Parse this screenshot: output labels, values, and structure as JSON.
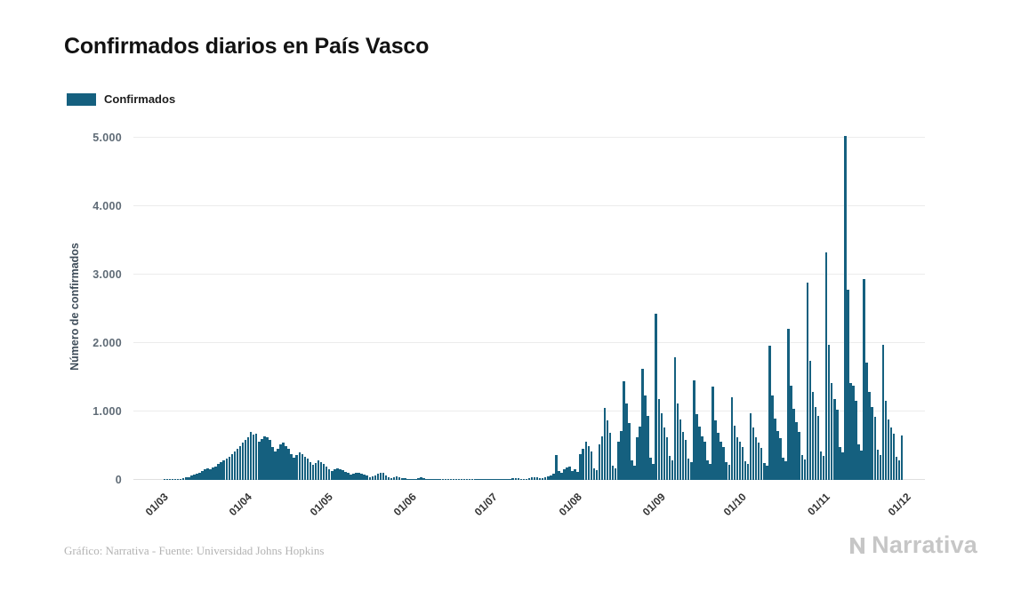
{
  "header": {
    "title": "Confirmados diarios en País Vasco"
  },
  "legend": {
    "label": "Confirmados",
    "color": "#15607f"
  },
  "footer": {
    "credit": "Gráfico: Narrativa - Fuente: Universidad Johns Hopkins",
    "brand": "Narrativa"
  },
  "chart_data": {
    "type": "bar",
    "title": "Confirmados diarios en País Vasco",
    "xlabel": "",
    "ylabel": "Número de confirmados",
    "ylim": [
      0,
      5200
    ],
    "grid": true,
    "legend_position": "top-left",
    "bar_color": "#15607f",
    "series_name": "Confirmados",
    "y_ticks": [
      {
        "value": 0,
        "label": "0"
      },
      {
        "value": 1000,
        "label": "1.000"
      },
      {
        "value": 2000,
        "label": "2.000"
      },
      {
        "value": 3000,
        "label": "3.000"
      },
      {
        "value": 4000,
        "label": "4.000"
      },
      {
        "value": 5000,
        "label": "5.000"
      }
    ],
    "x_ticks": [
      {
        "index": 10,
        "label": "01/03"
      },
      {
        "index": 41,
        "label": "01/04"
      },
      {
        "index": 71,
        "label": "01/05"
      },
      {
        "index": 102,
        "label": "01/06"
      },
      {
        "index": 132,
        "label": "01/07"
      },
      {
        "index": 163,
        "label": "01/08"
      },
      {
        "index": 194,
        "label": "01/09"
      },
      {
        "index": 224,
        "label": "01/10"
      },
      {
        "index": 255,
        "label": "01/11"
      },
      {
        "index": 285,
        "label": "01/12"
      }
    ],
    "values": [
      0,
      0,
      0,
      0,
      0,
      0,
      0,
      0,
      0,
      0,
      0,
      1,
      2,
      3,
      5,
      8,
      12,
      18,
      25,
      35,
      45,
      60,
      80,
      95,
      110,
      130,
      150,
      170,
      160,
      180,
      200,
      230,
      260,
      290,
      310,
      340,
      380,
      420,
      460,
      500,
      540,
      580,
      620,
      700,
      660,
      680,
      560,
      600,
      640,
      620,
      580,
      480,
      420,
      460,
      520,
      540,
      500,
      460,
      380,
      320,
      360,
      400,
      380,
      340,
      310,
      260,
      220,
      250,
      280,
      260,
      230,
      190,
      160,
      130,
      150,
      170,
      160,
      140,
      120,
      100,
      80,
      90,
      110,
      100,
      90,
      80,
      60,
      40,
      50,
      70,
      90,
      110,
      100,
      70,
      40,
      30,
      40,
      50,
      40,
      30,
      20,
      10,
      5,
      8,
      12,
      20,
      40,
      30,
      15,
      8,
      5,
      3,
      2,
      4,
      6,
      8,
      10,
      12,
      8,
      5,
      3,
      5,
      8,
      10,
      12,
      15,
      10,
      8,
      5,
      8,
      10,
      12,
      8,
      10,
      12,
      10,
      8,
      6,
      10,
      15,
      20,
      25,
      20,
      15,
      10,
      15,
      25,
      35,
      45,
      40,
      30,
      25,
      35,
      50,
      70,
      90,
      370,
      130,
      110,
      150,
      180,
      200,
      130,
      150,
      120,
      380,
      460,
      560,
      490,
      410,
      170,
      140,
      520,
      640,
      1050,
      870,
      690,
      210,
      170,
      560,
      720,
      1440,
      1120,
      830,
      280,
      210,
      620,
      780,
      1630,
      1240,
      940,
      330,
      240,
      2430,
      1180,
      980,
      760,
      620,
      350,
      280,
      1790,
      1120,
      880,
      700,
      590,
      310,
      260,
      1450,
      960,
      780,
      640,
      560,
      290,
      240,
      1360,
      870,
      690,
      560,
      480,
      260,
      220,
      1210,
      790,
      630,
      560,
      480,
      270,
      230,
      980,
      760,
      620,
      540,
      470,
      250,
      210,
      1960,
      1240,
      890,
      720,
      610,
      320,
      270,
      2210,
      1380,
      1040,
      840,
      700,
      360,
      300,
      2880,
      1740,
      1280,
      1060,
      940,
      420,
      350,
      3320,
      1980,
      1420,
      1180,
      1020,
      480,
      400,
      5030,
      2780,
      1420,
      1380,
      1160,
      520,
      430,
      2930,
      1720,
      1280,
      1060,
      920,
      440,
      370,
      1980,
      1160,
      880,
      760,
      680,
      340,
      290,
      650,
      0,
      0,
      0,
      0,
      0,
      0,
      0,
      0
    ]
  }
}
